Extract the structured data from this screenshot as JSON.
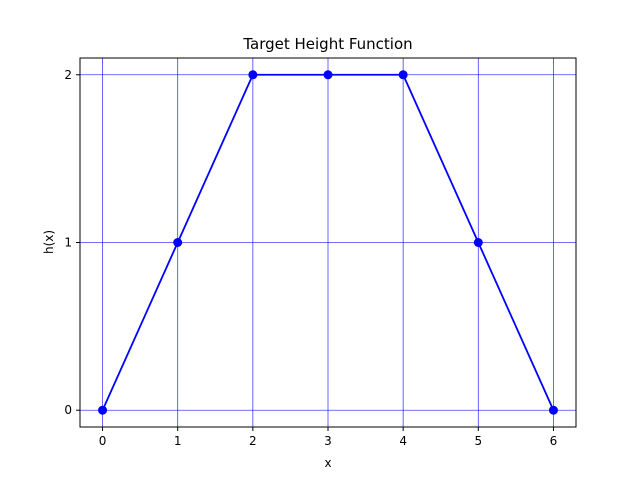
{
  "chart_data": {
    "type": "line",
    "title": "Target Height Function",
    "xlabel": "x",
    "ylabel": "h(x)",
    "x": [
      0,
      1,
      2,
      3,
      4,
      5,
      6
    ],
    "series": [
      {
        "values": [
          0,
          1,
          2,
          2,
          2,
          1,
          0
        ]
      }
    ],
    "xlim": [
      -0.3,
      6.3
    ],
    "ylim": [
      -0.1,
      2.1
    ],
    "xticks": [
      "0",
      "1",
      "2",
      "3",
      "4",
      "5",
      "6"
    ],
    "yticks": [
      "0",
      "1",
      "2"
    ],
    "grid": true,
    "marker": "circle",
    "line_color": "#0000ff",
    "grid_color": "#0000ff"
  }
}
